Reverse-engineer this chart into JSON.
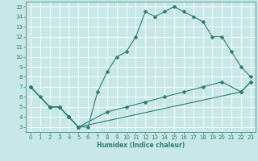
{
  "xlabel": "Humidex (Indice chaleur)",
  "bg_color": "#c8e8e8",
  "line_color": "#2e7d6e",
  "grid_color": "#ffffff",
  "xlim": [
    -0.5,
    23.5
  ],
  "ylim": [
    2.5,
    15.5
  ],
  "xticks": [
    0,
    1,
    2,
    3,
    4,
    5,
    6,
    7,
    8,
    9,
    10,
    11,
    12,
    13,
    14,
    15,
    16,
    17,
    18,
    19,
    20,
    21,
    22,
    23
  ],
  "yticks": [
    3,
    4,
    5,
    6,
    7,
    8,
    9,
    10,
    11,
    12,
    13,
    14,
    15
  ],
  "line1_x": [
    0,
    1,
    2,
    3,
    4,
    5,
    6,
    7,
    8,
    9,
    10,
    11,
    12,
    13,
    14,
    15,
    16,
    17,
    18,
    19,
    20,
    21,
    22,
    23
  ],
  "line1_y": [
    7,
    6,
    5,
    5,
    4,
    3,
    3,
    6.5,
    8.5,
    10,
    10.5,
    12,
    14.5,
    14,
    14.5,
    15,
    14.5,
    14,
    13.5,
    12,
    12,
    10.5,
    9,
    8
  ],
  "line2_x": [
    0,
    2,
    3,
    4,
    5,
    22,
    23
  ],
  "line2_y": [
    7,
    5,
    5,
    4,
    3,
    6.5,
    7.5
  ],
  "line3_x": [
    0,
    2,
    3,
    4,
    5,
    8,
    10,
    12,
    14,
    16,
    18,
    20,
    22,
    23
  ],
  "line3_y": [
    7,
    5,
    5,
    4,
    3,
    4.5,
    5,
    5.5,
    6,
    6.5,
    7,
    7.5,
    6.5,
    7.5
  ]
}
